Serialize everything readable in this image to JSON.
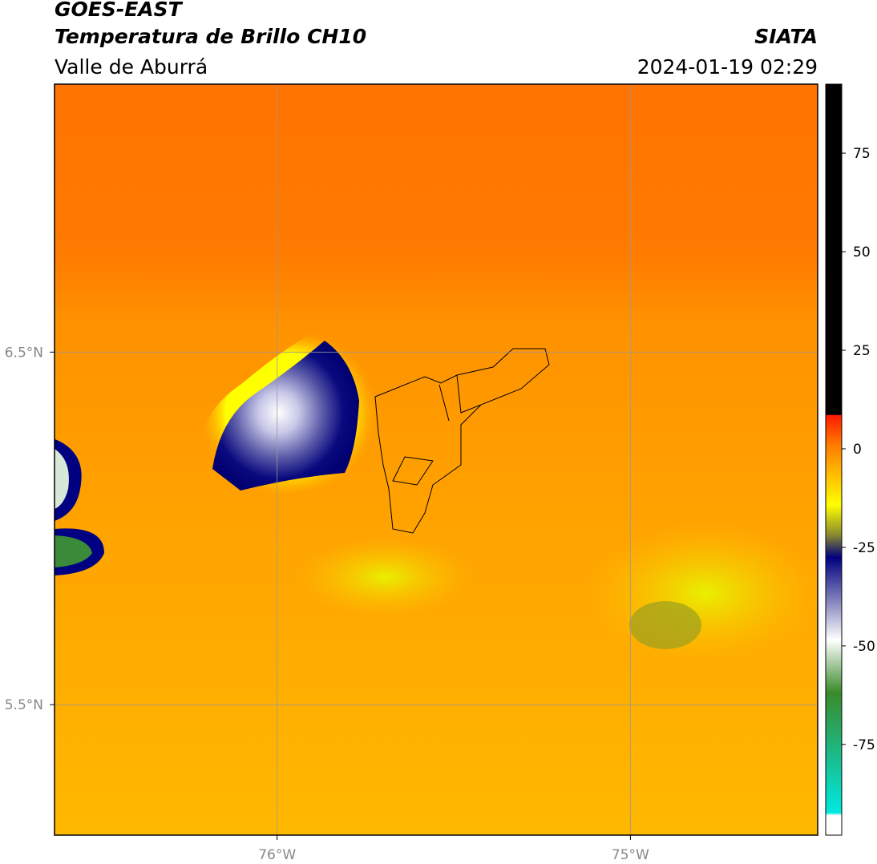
{
  "header": {
    "title": "GOES-EAST",
    "subtitle": "Temperatura de Brillo CH10",
    "region": "Valle de Aburrá",
    "source": "SIATA",
    "datetime": "2024-01-19 02:29"
  },
  "map": {
    "xlim": [
      -76.63,
      -74.47
    ],
    "ylim": [
      5.13,
      7.26
    ],
    "xticks": [
      {
        "value": -76,
        "label": "76°W"
      },
      {
        "value": -75,
        "label": "75°W"
      }
    ],
    "yticks": [
      {
        "value": 6.5,
        "label": "6.5°N"
      },
      {
        "value": 5.5,
        "label": "5.5°N"
      }
    ],
    "grid": true
  },
  "colorbar": {
    "clim": [
      -98,
      92.5
    ],
    "ticks": [
      75,
      50,
      25,
      0,
      -25,
      -50,
      -75
    ]
  }
}
